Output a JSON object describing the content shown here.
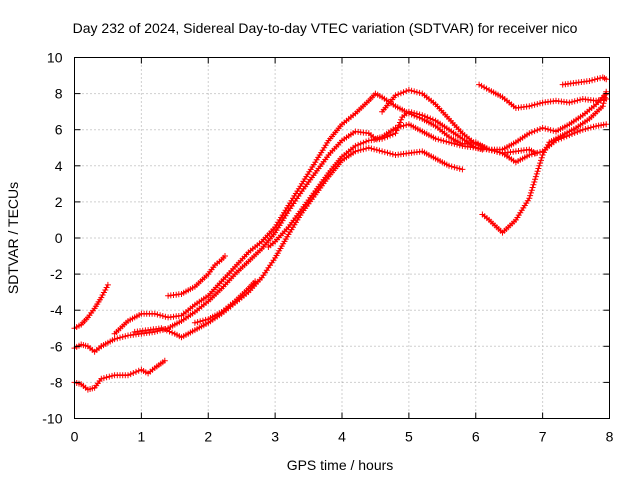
{
  "chart_data": {
    "type": "line",
    "title": "Day 232 of 2024, Sidereal Day-to-day VTEC variation (SDTVAR) for receiver nico",
    "xlabel": "GPS time / hours",
    "ylabel": "SDTVAR / TECUs",
    "xlim": [
      0,
      8
    ],
    "ylim": [
      -10,
      10
    ],
    "xticks": [
      "0",
      "1",
      "2",
      "3",
      "4",
      "5",
      "6",
      "7",
      "8"
    ],
    "yticks": [
      "-10",
      "-8",
      "-6",
      "-4",
      "-2",
      "0",
      "2",
      "4",
      "6",
      "8",
      "10"
    ],
    "grid": true,
    "marker": "plus",
    "color": "#ff0000",
    "series": [
      {
        "x": [
          0.0,
          0.1,
          0.2,
          0.3,
          0.4,
          0.5
        ],
        "y": [
          -5.0,
          -4.8,
          -4.4,
          -3.9,
          -3.3,
          -2.6
        ]
      },
      {
        "x": [
          0.0,
          0.1,
          0.2,
          0.3,
          0.4
        ],
        "y": [
          -6.1,
          -5.9,
          -6.0,
          -6.3,
          -6.0
        ]
      },
      {
        "x": [
          0.0,
          0.1,
          0.2,
          0.3,
          0.4,
          0.6,
          0.8,
          1.0,
          1.1,
          1.2,
          1.35
        ],
        "y": [
          -8.0,
          -8.1,
          -8.4,
          -8.3,
          -7.8,
          -7.6,
          -7.6,
          -7.3,
          -7.5,
          -7.2,
          -6.8
        ]
      },
      {
        "x": [
          0.4,
          0.6,
          0.8,
          1.0,
          1.2,
          1.4,
          1.6,
          1.8,
          2.0,
          2.2,
          2.4,
          2.6,
          2.8,
          3.0,
          3.2,
          3.4,
          3.6,
          3.8,
          4.0,
          4.2,
          4.4,
          4.5,
          4.6,
          4.8,
          5.0,
          5.2,
          5.4,
          5.6,
          5.8,
          6.0,
          6.2,
          6.4,
          6.6,
          6.8,
          7.0,
          7.2,
          7.4,
          7.6,
          7.8,
          7.95
        ],
        "y": [
          -6.0,
          -5.6,
          -5.4,
          -5.3,
          -5.2,
          -5.0,
          -4.6,
          -4.1,
          -3.5,
          -2.8,
          -2.0,
          -1.3,
          -0.6,
          0.3,
          1.5,
          2.6,
          3.6,
          4.6,
          5.4,
          5.9,
          5.8,
          5.5,
          5.6,
          6.1,
          6.3,
          5.9,
          5.5,
          5.3,
          5.1,
          5.0,
          4.9,
          4.9,
          5.3,
          5.8,
          6.1,
          5.9,
          6.3,
          6.8,
          7.4,
          8.0
        ]
      },
      {
        "x": [
          0.6,
          0.8,
          1.0,
          1.2,
          1.4,
          1.6,
          1.7,
          1.8,
          2.0,
          2.2,
          2.4,
          2.6,
          2.8,
          3.0,
          3.2,
          3.4,
          3.6,
          3.8,
          4.0,
          4.2,
          4.4,
          4.5,
          4.6,
          4.8,
          5.0,
          5.2,
          5.4,
          5.6,
          5.8,
          6.0,
          6.2,
          6.4,
          6.6,
          6.8,
          7.0,
          7.2,
          7.4,
          7.6,
          7.8,
          7.95
        ],
        "y": [
          -5.3,
          -4.6,
          -4.2,
          -4.2,
          -4.4,
          -4.3,
          -4.0,
          -3.7,
          -3.2,
          -2.4,
          -1.6,
          -0.8,
          -0.2,
          0.6,
          1.8,
          3.0,
          4.2,
          5.4,
          6.3,
          6.9,
          7.6,
          8.0,
          7.8,
          7.3,
          6.9,
          6.6,
          6.2,
          5.6,
          5.2,
          5.3,
          4.9,
          4.7,
          4.2,
          4.6,
          4.8,
          5.4,
          5.7,
          6.0,
          6.2,
          6.3
        ]
      },
      {
        "x": [
          0.9,
          1.1,
          1.3,
          1.5,
          1.6,
          1.8,
          2.0,
          2.2,
          2.4,
          2.6,
          2.8,
          3.0,
          3.2,
          3.4,
          3.6,
          3.8,
          4.0,
          4.2,
          4.4,
          4.6,
          4.8,
          5.0,
          5.2,
          5.4,
          5.6,
          5.8
        ],
        "y": [
          -5.2,
          -5.1,
          -5.0,
          -5.3,
          -5.5,
          -5.1,
          -4.7,
          -4.2,
          -3.6,
          -3.0,
          -2.2,
          -1.1,
          0.2,
          1.4,
          2.4,
          3.4,
          4.3,
          4.8,
          5.0,
          4.8,
          4.6,
          4.7,
          4.8,
          4.4,
          4.0,
          3.8
        ]
      },
      {
        "x": [
          1.4,
          1.6,
          1.8,
          2.0,
          2.1,
          2.2,
          2.25
        ],
        "y": [
          -3.2,
          -3.1,
          -2.7,
          -2.0,
          -1.5,
          -1.2,
          -1.0
        ]
      },
      {
        "x": [
          1.8,
          2.0,
          2.2,
          2.4,
          2.6,
          2.7
        ],
        "y": [
          -4.7,
          -4.5,
          -4.1,
          -3.5,
          -2.8,
          -2.4
        ]
      },
      {
        "x": [
          2.9,
          3.0,
          3.2,
          3.4,
          3.6,
          3.8,
          4.0,
          4.2,
          4.4,
          4.6,
          4.8,
          4.9,
          5.0,
          5.2,
          5.4,
          5.6,
          5.8,
          6.0,
          6.1
        ],
        "y": [
          -0.5,
          -0.2,
          0.6,
          1.6,
          2.6,
          3.6,
          4.5,
          5.1,
          5.4,
          5.5,
          5.8,
          6.7,
          7.0,
          6.8,
          6.5,
          6.0,
          5.5,
          5.0,
          4.9
        ]
      },
      {
        "x": [
          4.6,
          4.8,
          5.0,
          5.2,
          5.4,
          5.6,
          5.8,
          6.0,
          6.2,
          6.4,
          6.6,
          6.8,
          6.9
        ],
        "y": [
          7.0,
          7.9,
          8.2,
          8.0,
          7.4,
          6.6,
          5.8,
          5.2,
          4.9,
          4.7,
          4.8,
          4.9,
          4.7
        ]
      },
      {
        "x": [
          6.05,
          6.2,
          6.4,
          6.6,
          6.8,
          7.0,
          7.2,
          7.4,
          7.6,
          7.8,
          7.95
        ],
        "y": [
          8.5,
          8.2,
          7.8,
          7.2,
          7.3,
          7.5,
          7.6,
          7.5,
          7.7,
          7.6,
          7.7
        ]
      },
      {
        "x": [
          7.3,
          7.5,
          7.7,
          7.9,
          7.95
        ],
        "y": [
          8.5,
          8.6,
          8.7,
          8.9,
          8.8
        ]
      },
      {
        "x": [
          6.1,
          6.2,
          6.4,
          6.6,
          6.8,
          6.9,
          7.0,
          7.1,
          7.3,
          7.5,
          7.7,
          7.9,
          7.95
        ],
        "y": [
          1.3,
          1.0,
          0.3,
          1.0,
          2.2,
          3.4,
          4.6,
          5.3,
          5.7,
          6.1,
          6.6,
          7.3,
          8.1
        ]
      }
    ]
  }
}
